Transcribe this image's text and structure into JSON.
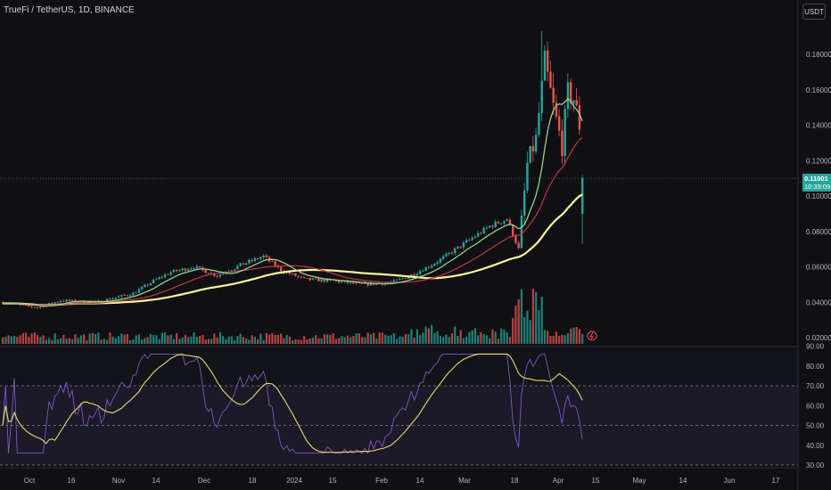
{
  "header": {
    "title": "TrueFi / TetherUS, 1D, BINANCE"
  },
  "currency_button": "USDT",
  "price_badge": {
    "price": "0.11001",
    "countdown": "10:39:09",
    "color": "#26a69a"
  },
  "colors": {
    "background": "#101014",
    "up": "#26a69a",
    "down": "#ef5350",
    "ma_fast": "#9ccf8c",
    "ma_mid": "#c1393f",
    "ma_slow": "#fff59d",
    "rsi_line": "#7e57c2",
    "rsi_ma": "#fff176"
  },
  "price_axis": {
    "ticks": [
      "0.18000",
      "0.16000",
      "0.14000",
      "0.12000",
      "0.10000",
      "0.08000",
      "0.06000",
      "0.04000",
      "0.02000"
    ]
  },
  "rsi_axis": {
    "ticks": [
      "90.00",
      "80.00",
      "70.00",
      "60.00",
      "50.00",
      "40.00",
      "30.00"
    ],
    "levels": [
      70,
      50,
      30
    ]
  },
  "time_axis": {
    "labels": [
      "Oct",
      "16",
      "Nov",
      "14",
      "Dec",
      "18",
      "2024",
      "15",
      "Feb",
      "14",
      "Mar",
      "18",
      "Apr",
      "15",
      "May",
      "14",
      "Jun",
      "17"
    ]
  },
  "chart_data": {
    "type": "candlestick",
    "pane_main_ylim": [
      0.02,
      0.19
    ],
    "pane_rsi_ylim": [
      30,
      90
    ],
    "series": [
      {
        "name": "price_close_approx",
        "points": [
          [
            "Oct",
            0.038
          ],
          [
            "16",
            0.039
          ],
          [
            "Nov",
            0.043
          ],
          [
            "14",
            0.052
          ],
          [
            "Dec",
            0.06
          ],
          [
            "18",
            0.056
          ],
          [
            "2024",
            0.058
          ],
          [
            "15",
            0.05
          ],
          [
            "Feb",
            0.052
          ],
          [
            "14",
            0.06
          ],
          [
            "Mar",
            0.078
          ],
          [
            "18",
            0.09
          ],
          [
            "Apr",
            0.16
          ],
          [
            "Apr",
            0.14
          ],
          [
            "15",
            0.11
          ]
        ]
      }
    ],
    "last_price": 0.11001
  }
}
